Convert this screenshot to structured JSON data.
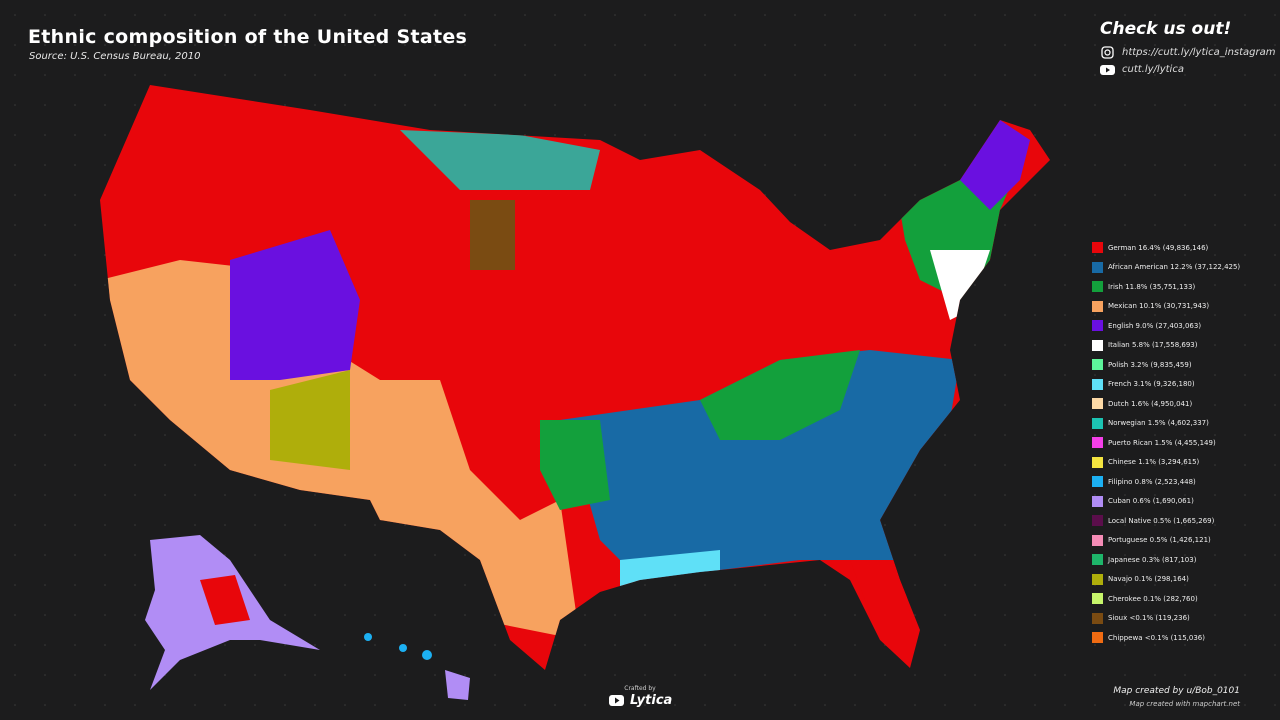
{
  "header": {
    "title": "Ethnic composition of the United States",
    "source": "Source: U.S. Census Bureau, 2010"
  },
  "promo": {
    "heading": "Check us out!",
    "instagram": "https://cutt.ly/lytica_instagram",
    "youtube": "cutt.ly/lytica"
  },
  "legend": [
    {
      "label": "German 16.4% (49,836,146)",
      "color": "#e8060b"
    },
    {
      "label": "African American 12.2% (37,122,425)",
      "color": "#186aa5"
    },
    {
      "label": "Irish 11.8% (35,751,133)",
      "color": "#13a03c"
    },
    {
      "label": "Mexican 10.1% (30,731,943)",
      "color": "#f7a25f"
    },
    {
      "label": "English 9.0% (27,403,063)",
      "color": "#6a10e0"
    },
    {
      "label": "Italian 5.8% (17,558,693)",
      "color": "#ffffff"
    },
    {
      "label": "Polish 3.2% (9,835,459)",
      "color": "#5df59b"
    },
    {
      "label": "French 3.1% (9,326,180)",
      "color": "#5fe0f7"
    },
    {
      "label": "Dutch 1.6% (4,950,041)",
      "color": "#fcd9a6"
    },
    {
      "label": "Norwegian 1.5% (4,602,337)",
      "color": "#1cc3b2"
    },
    {
      "label": "Puerto Rican 1.5% (4,455,149)",
      "color": "#f43fe8"
    },
    {
      "label": "Chinese 1.1% (3,294,615)",
      "color": "#f4e440"
    },
    {
      "label": "Filipino 0.8% (2,523,448)",
      "color": "#1cb0f2"
    },
    {
      "label": "Cuban 0.6% (1,690,061)",
      "color": "#b18df5"
    },
    {
      "label": "Local Native 0.5% (1,665,269)",
      "color": "#5b0e4b"
    },
    {
      "label": "Portuguese 0.5% (1,426,121)",
      "color": "#f58cb6"
    },
    {
      "label": "Japanese 0.3% (817,103)",
      "color": "#1eb56a"
    },
    {
      "label": "Navajo 0.1% (298,164)",
      "color": "#afae0b"
    },
    {
      "label": "Cherokee 0.1% (282,760)",
      "color": "#c7f56b"
    },
    {
      "label": "Sioux <0.1% (119,236)",
      "color": "#7a4b12"
    },
    {
      "label": "Chippewa <0.1% (115,036)",
      "color": "#f06b12"
    }
  ],
  "footer": {
    "crafted": "Crafted by",
    "brand": "Lytica",
    "author": "Map created by u/Bob_0101",
    "tool": "Map created with mapchart.net"
  }
}
